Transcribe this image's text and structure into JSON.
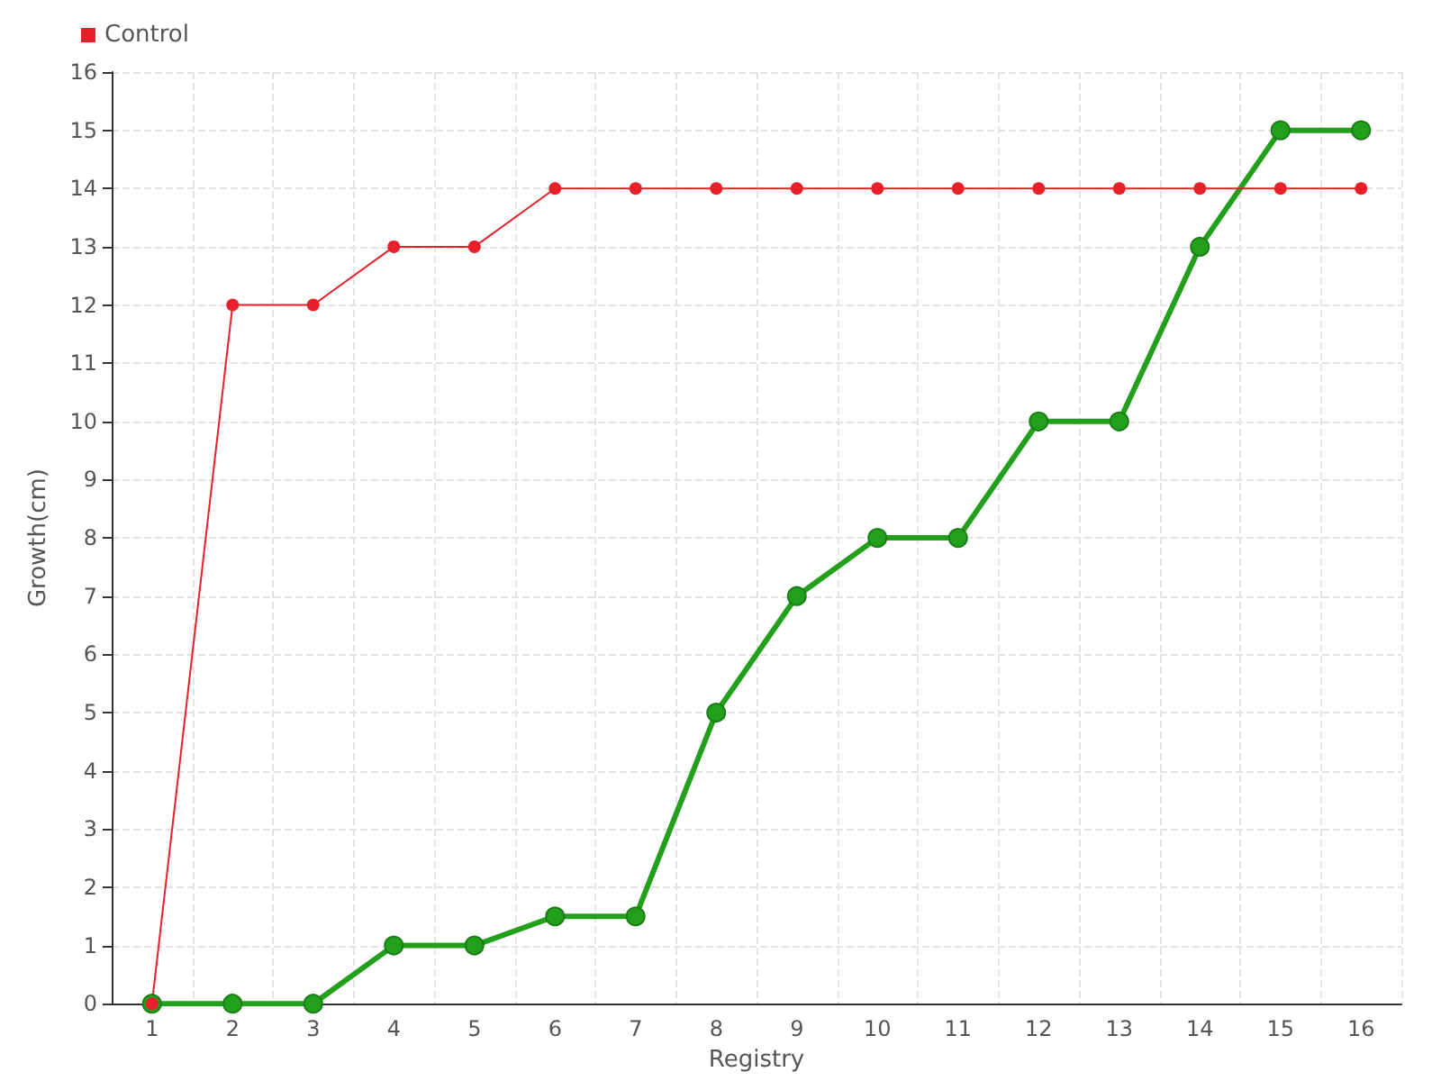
{
  "chart_data": {
    "type": "line",
    "xlabel": "Registry",
    "ylabel": "Growth(cm)",
    "categories": [
      "1",
      "2",
      "3",
      "4",
      "5",
      "6",
      "7",
      "8",
      "9",
      "10",
      "11",
      "12",
      "13",
      "14",
      "15",
      "16"
    ],
    "series": [
      {
        "color": "#22a01c",
        "values": [
          0,
          0,
          0,
          1,
          1,
          1.5,
          1.5,
          5,
          7,
          8,
          8,
          10,
          10,
          13,
          15,
          15
        ]
      },
      {
        "name": "Control",
        "color": "#e8202a",
        "values": [
          0,
          12,
          12,
          13,
          13,
          14,
          14,
          14,
          14,
          14,
          14,
          14,
          14,
          14,
          14,
          14
        ]
      }
    ],
    "ylim": [
      0,
      16
    ],
    "yticks": [
      0,
      1,
      2,
      3,
      4,
      5,
      6,
      7,
      8,
      9,
      10,
      11,
      12,
      13,
      14,
      15,
      16
    ],
    "grid": true,
    "legend": "top left",
    "marker": "circle",
    "line_style": "solid"
  }
}
